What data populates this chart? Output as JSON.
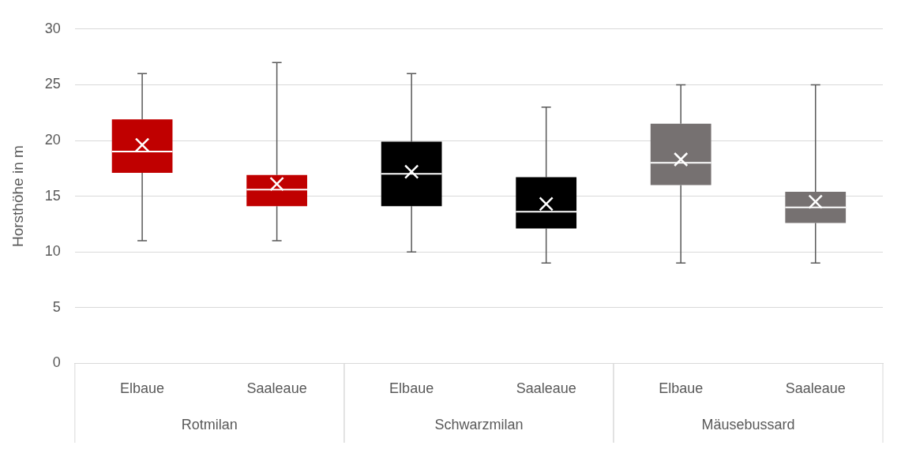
{
  "chart_data": {
    "type": "box",
    "ylabel": "Horsthöhe in m",
    "categories": [
      "Elbaue",
      "Saaleaue",
      "Elbaue",
      "Saaleaue",
      "Elbaue",
      "Saaleaue"
    ],
    "annotations": [
      "Rotmilan",
      "Schwarzmilan",
      "Mäusebussard"
    ],
    "ylim": [
      0,
      30
    ],
    "yticks": [
      0,
      5,
      10,
      15,
      20,
      25,
      30
    ],
    "grid": "y",
    "colors": [
      "#c00000",
      "#c00000",
      "#000000",
      "#000000",
      "#767171",
      "#767171"
    ],
    "boxes": [
      {
        "low": 11,
        "q1": 17.1,
        "median": 19,
        "q3": 21.9,
        "high": 26,
        "mean": 19.6
      },
      {
        "low": 11,
        "q1": 14.1,
        "median": 15.6,
        "q3": 16.9,
        "high": 27,
        "mean": 16.1
      },
      {
        "low": 10,
        "q1": 14.1,
        "median": 17,
        "q3": 19.9,
        "high": 26,
        "mean": 17.2
      },
      {
        "low": 9,
        "q1": 12.1,
        "median": 13.6,
        "q3": 16.7,
        "high": 23,
        "mean": 14.3
      },
      {
        "low": 9,
        "q1": 16,
        "median": 18,
        "q3": 21.5,
        "high": 25,
        "mean": 18.3
      },
      {
        "low": 9,
        "q1": 12.6,
        "median": 14,
        "q3": 15.4,
        "high": 25,
        "mean": 14.5
      }
    ]
  }
}
